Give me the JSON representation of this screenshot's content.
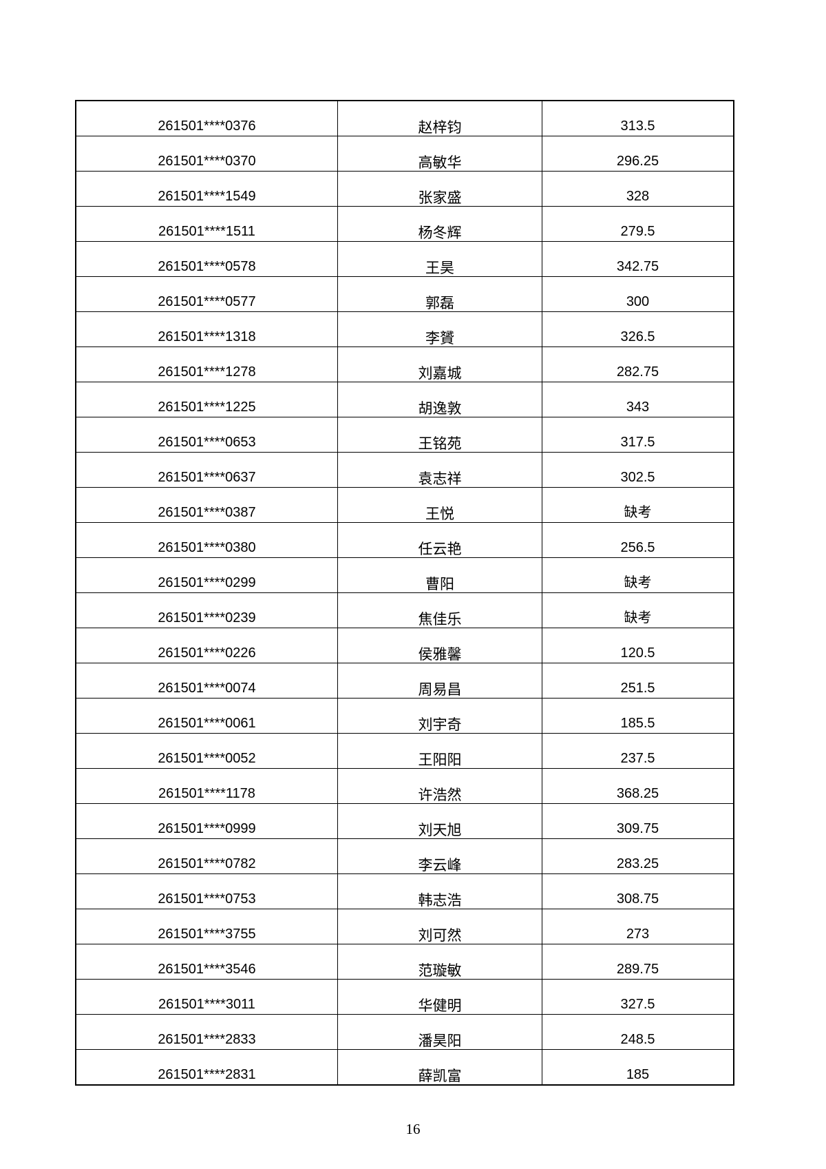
{
  "rows": [
    {
      "id": "261501****0376",
      "name": "赵梓钧",
      "score": "313.5"
    },
    {
      "id": "261501****0370",
      "name": "高敏华",
      "score": "296.25"
    },
    {
      "id": "261501****1549",
      "name": "张家盛",
      "score": "328"
    },
    {
      "id": "261501****1511",
      "name": "杨冬辉",
      "score": "279.5"
    },
    {
      "id": "261501****0578",
      "name": "王昊",
      "score": "342.75"
    },
    {
      "id": "261501****0577",
      "name": "郭磊",
      "score": "300"
    },
    {
      "id": "261501****1318",
      "name": "李贇",
      "score": "326.5"
    },
    {
      "id": "261501****1278",
      "name": "刘嘉城",
      "score": "282.75"
    },
    {
      "id": "261501****1225",
      "name": "胡逸敦",
      "score": "343"
    },
    {
      "id": "261501****0653",
      "name": "王铭苑",
      "score": "317.5"
    },
    {
      "id": "261501****0637",
      "name": "袁志祥",
      "score": "302.5"
    },
    {
      "id": "261501****0387",
      "name": "王悦",
      "score": "缺考"
    },
    {
      "id": "261501****0380",
      "name": "任云艳",
      "score": "256.5"
    },
    {
      "id": "261501****0299",
      "name": "曹阳",
      "score": "缺考"
    },
    {
      "id": "261501****0239",
      "name": "焦佳乐",
      "score": "缺考"
    },
    {
      "id": "261501****0226",
      "name": "侯雅馨",
      "score": "120.5"
    },
    {
      "id": "261501****0074",
      "name": "周易昌",
      "score": "251.5"
    },
    {
      "id": "261501****0061",
      "name": "刘宇奇",
      "score": "185.5"
    },
    {
      "id": "261501****0052",
      "name": "王阳阳",
      "score": "237.5"
    },
    {
      "id": "261501****1178",
      "name": "许浩然",
      "score": "368.25"
    },
    {
      "id": "261501****0999",
      "name": "刘天旭",
      "score": "309.75"
    },
    {
      "id": "261501****0782",
      "name": "李云峰",
      "score": "283.25"
    },
    {
      "id": "261501****0753",
      "name": "韩志浩",
      "score": "308.75"
    },
    {
      "id": "261501****3755",
      "name": "刘可然",
      "score": "273"
    },
    {
      "id": "261501****3546",
      "name": "范璇敏",
      "score": "289.75"
    },
    {
      "id": "261501****3011",
      "name": "华健明",
      "score": "327.5"
    },
    {
      "id": "261501****2833",
      "name": "潘昊阳",
      "score": "248.5"
    },
    {
      "id": "261501****2831",
      "name": "薛凯富",
      "score": "185"
    }
  ],
  "page_number": "16"
}
